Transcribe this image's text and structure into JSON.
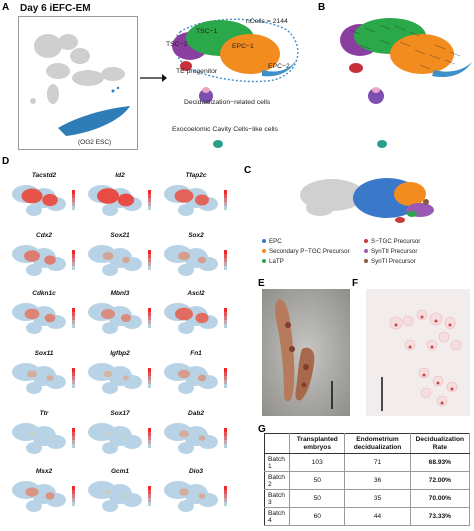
{
  "panel_labels": {
    "a": "A",
    "b": "B",
    "c": "C",
    "d": "D",
    "e": "E",
    "f": "F",
    "g": "G"
  },
  "panel_a": {
    "title": "Day 6 iEFC-EM",
    "inset_caption": "(OG2 ESC)",
    "ncells": "nCells = 2144",
    "clusters": {
      "tsc2": "TSC−2",
      "tsc1": "TSC−1",
      "epc1": "EPC−1",
      "epc2": "EPC−2",
      "te_progenitor": "TE progenitor",
      "decidualization": "Decidualization−related cells",
      "exocoelomic": "Exocoelomic Cavity Cells−like cells"
    },
    "colors": {
      "tsc2": "#8a3fa0",
      "tsc1": "#2aa84a",
      "epc1": "#f28c1f",
      "epc_edge": "#3f8fc9",
      "te": "#c6303a",
      "decid": "#7c4fb0",
      "exo": "#2a9d8f",
      "gray": "#c9c9c9"
    }
  },
  "panel_c": {
    "legend": [
      {
        "label": "EPC",
        "color": "#3a78c9"
      },
      {
        "label": "S−TGC Precursor",
        "color": "#c63a3a"
      },
      {
        "label": "Secondary P−TGC Precursor",
        "color": "#f28c1f"
      },
      {
        "label": "SynTII Precursor",
        "color": "#9b59b6"
      },
      {
        "label": "LaTP",
        "color": "#2aa84a"
      },
      {
        "label": "SynTI Precursor",
        "color": "#8c5a3c"
      }
    ]
  },
  "panel_d": {
    "genes": [
      "Tacstd2",
      "Id2",
      "Tfap2c",
      "Cdx2",
      "Sox21",
      "Sox2",
      "Cdkn1c",
      "Mbnl3",
      "Ascl2",
      "Sox11",
      "Igfbp2",
      "Fn1",
      "Ttr",
      "Sox17",
      "Dab2",
      "Msx2",
      "Gcm1",
      "Dio3"
    ],
    "intensity": [
      0.85,
      0.9,
      0.75,
      0.6,
      0.35,
      0.4,
      0.55,
      0.5,
      0.7,
      0.3,
      0.25,
      0.4,
      0.05,
      0.05,
      0.3,
      0.45,
      0.1,
      0.3
    ]
  },
  "panel_g": {
    "headers": [
      "",
      "Transplanted embryos",
      "Endometrium decidualization",
      "Decidualization Rate"
    ],
    "rows": [
      [
        "Batch 1",
        "103",
        "71",
        "68.93%"
      ],
      [
        "Batch 2",
        "50",
        "36",
        "72.00%"
      ],
      [
        "Batch 3",
        "50",
        "35",
        "70.00%"
      ],
      [
        "Batch 4",
        "60",
        "44",
        "73.33%"
      ]
    ]
  }
}
